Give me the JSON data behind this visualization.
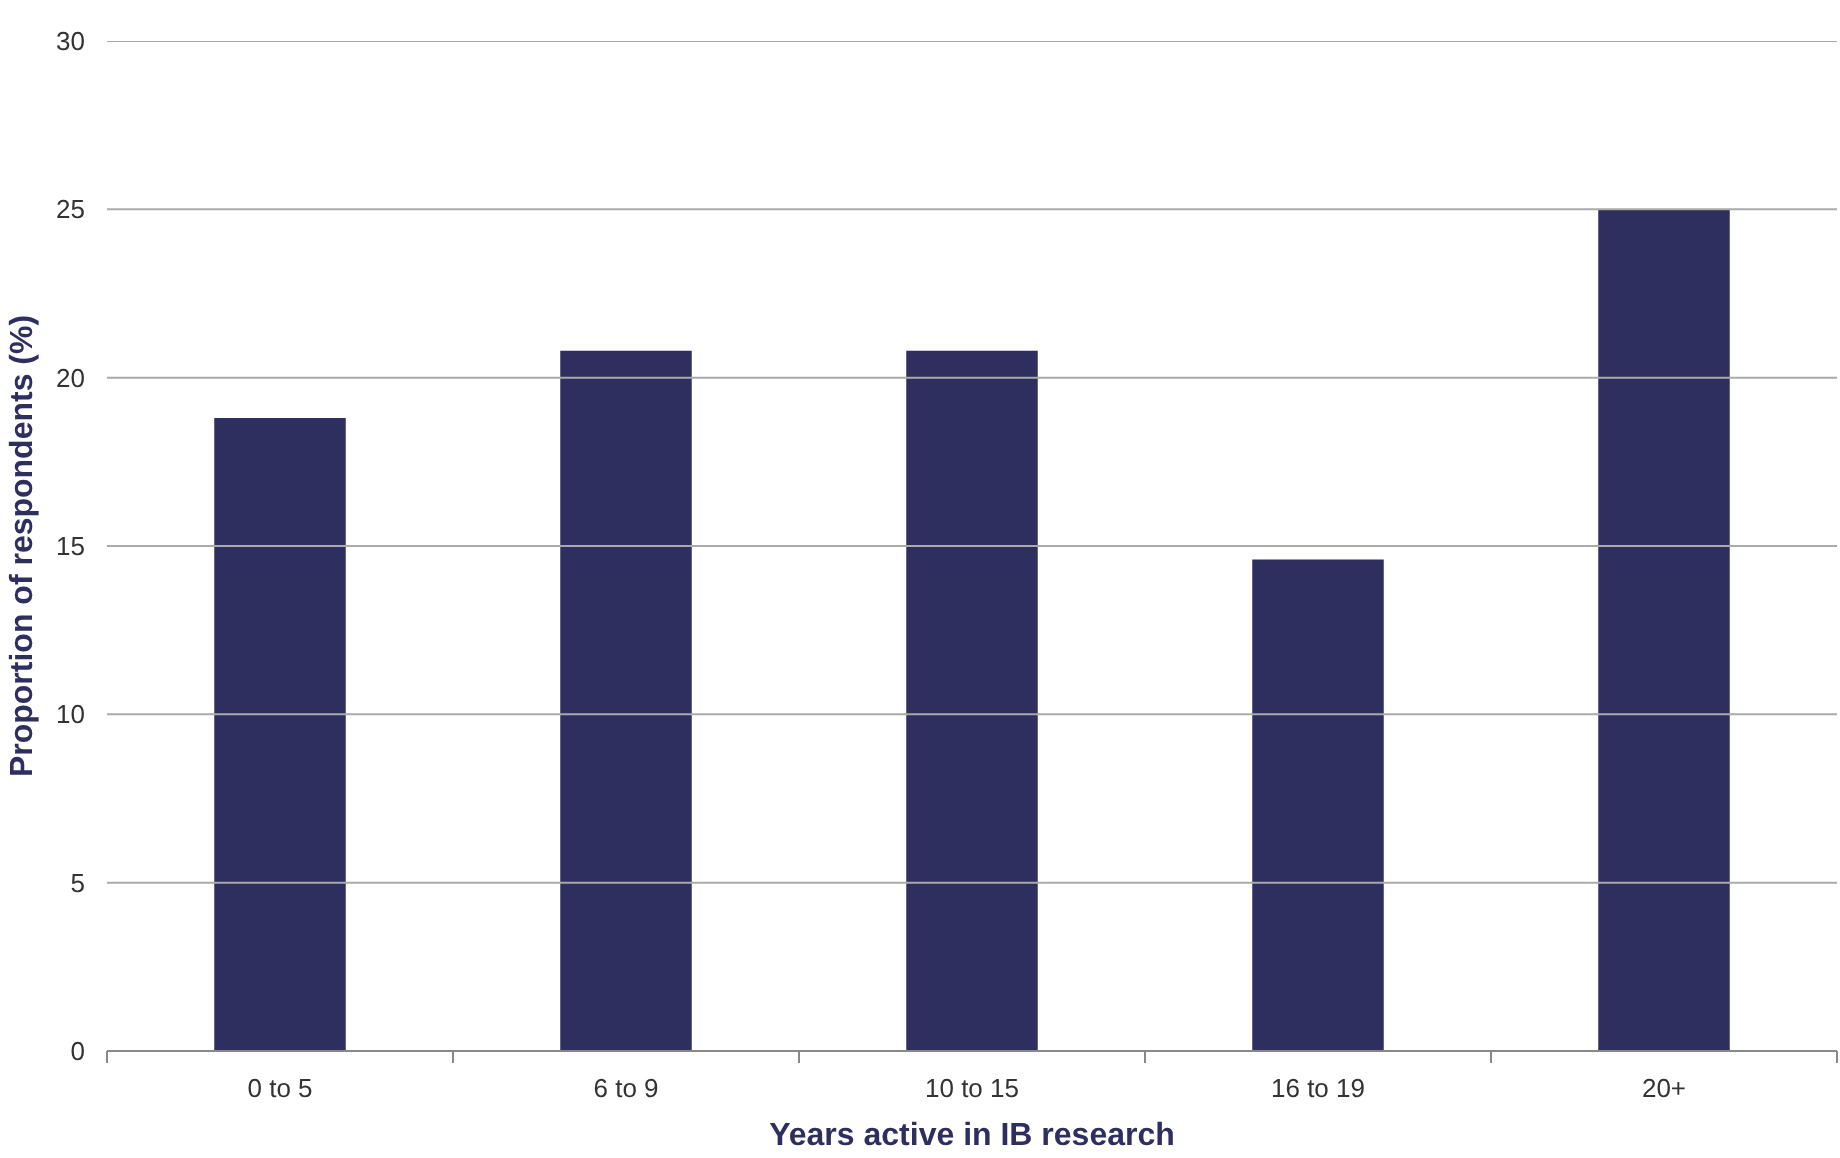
{
  "chart_data": {
    "type": "bar",
    "xlabel": "Years active in IB research",
    "ylabel": "Proportion of respondents (%)",
    "categories": [
      "0 to 5",
      "6 to 9",
      "10 to 15",
      "16 to 19",
      "20+"
    ],
    "values": [
      18.8,
      20.8,
      20.8,
      14.6,
      25.0
    ],
    "color": "#2e2e5f",
    "ylim": [
      0,
      30
    ],
    "yticks": [
      0,
      5,
      10,
      15,
      20,
      25,
      30
    ],
    "grid": "y"
  }
}
